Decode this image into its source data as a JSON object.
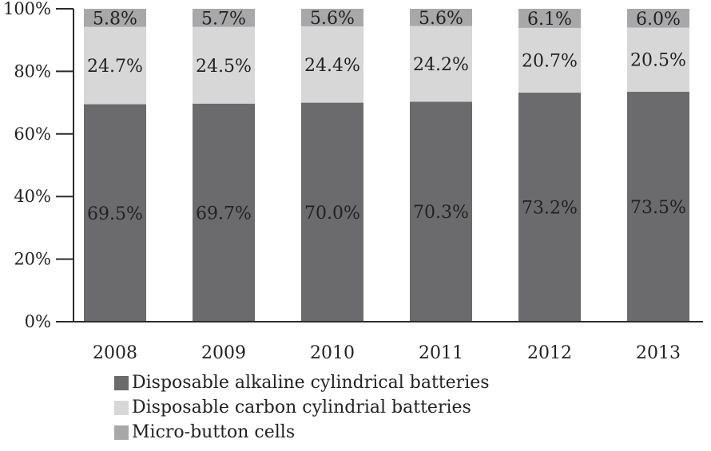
{
  "chart_data": {
    "type": "bar",
    "stacked": true,
    "categories": [
      "2008",
      "2009",
      "2010",
      "2011",
      "2012",
      "2013"
    ],
    "series": [
      {
        "name": "Disposable alkaline cylindrical batteries",
        "color": "#6b6b6d",
        "values": [
          69.5,
          69.7,
          70.0,
          70.3,
          73.2,
          73.5
        ],
        "labels": [
          "69.5%",
          "69.7%",
          "70.0%",
          "70.3%",
          "73.2%",
          "73.5%"
        ]
      },
      {
        "name": "Disposable carbon cylindrial batteries",
        "color": "#d7d7d8",
        "values": [
          24.7,
          24.5,
          24.4,
          24.2,
          20.7,
          20.5
        ],
        "labels": [
          "24.7%",
          "24.5%",
          "24.4%",
          "24.2%",
          "20.7%",
          "20.5%"
        ]
      },
      {
        "name": "Micro-button cells",
        "color": "#a8a8aa",
        "values": [
          5.8,
          5.7,
          5.6,
          5.6,
          6.1,
          6.0
        ],
        "labels": [
          "5.8%",
          "5.7%",
          "5.6%",
          "5.6%",
          "6.1%",
          "6.0%"
        ]
      }
    ],
    "ylim": [
      0,
      100
    ],
    "yticks": [
      0,
      20,
      40,
      60,
      80,
      100
    ],
    "ytick_labels": [
      "0%",
      "20%",
      "40%",
      "60%",
      "80%",
      "100%"
    ],
    "title": "",
    "xlabel": "",
    "ylabel": "",
    "grid": false,
    "legend_position": "bottom-left"
  }
}
